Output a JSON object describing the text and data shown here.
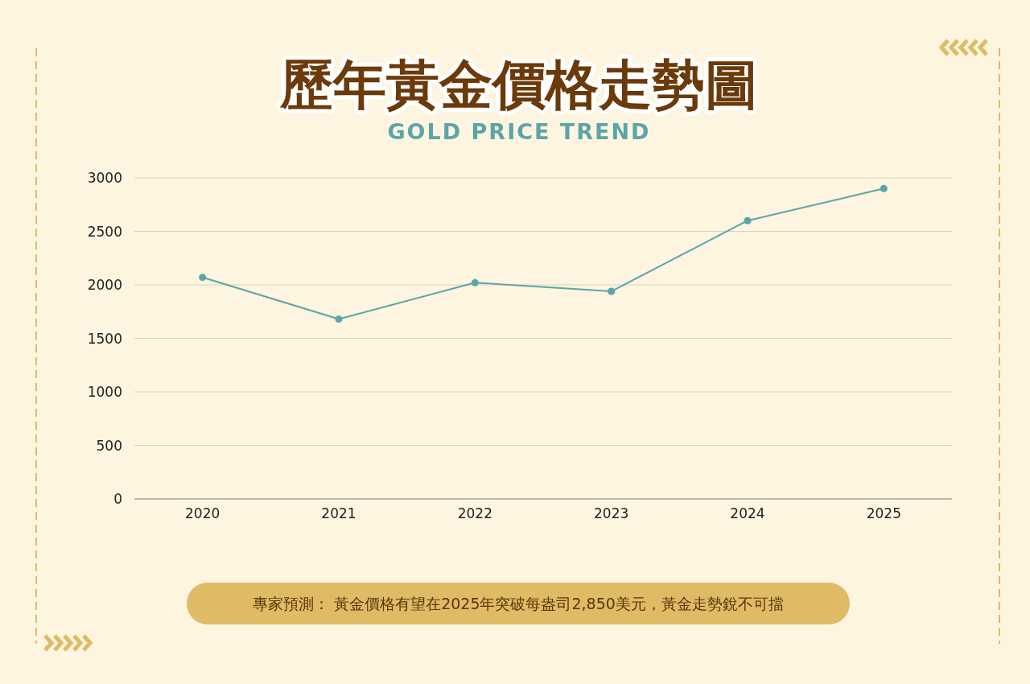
{
  "chart_data": {
    "type": "line",
    "title": "歷年黃金價格走勢圖",
    "subtitle": "GOLD PRICE TREND",
    "categories": [
      "2020",
      "2021",
      "2022",
      "2023",
      "2024",
      "2025"
    ],
    "series": [
      {
        "color": "#5ba5a8",
        "values": [
          2070,
          1680,
          2020,
          1940,
          2600,
          2900
        ]
      }
    ],
    "ylim": [
      0,
      3000
    ],
    "yticks": [
      0,
      500,
      1000,
      1500,
      2000,
      2500,
      3000
    ],
    "grid": "y",
    "marker": "circle",
    "line_style": "solid",
    "annotations": [
      "專家預測： 黃金價格有望在2025年突破每盎司2,850美元，黃金走勢銳不可擋"
    ]
  }
}
